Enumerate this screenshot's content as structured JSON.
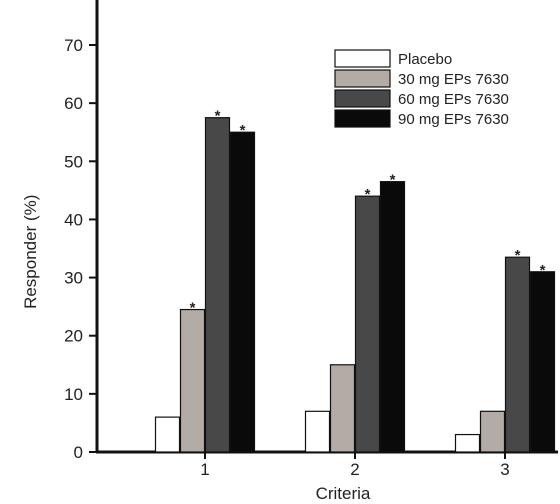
{
  "chart_data": {
    "type": "bar",
    "xlabel": "Criteria",
    "ylabel": "Responder (%)",
    "ylim": [
      0,
      73
    ],
    "yticks": [
      0,
      10,
      20,
      30,
      40,
      50,
      60,
      70
    ],
    "categories": [
      "1",
      "2",
      "3"
    ],
    "grid": false,
    "legend_position": "top-right",
    "series": [
      {
        "name": "Placebo",
        "color": "#ffffff",
        "values": [
          6,
          7,
          3
        ],
        "significant": [
          false,
          false,
          false
        ]
      },
      {
        "name": "30 mg EPs 7630",
        "color": "#b3aba5",
        "values": [
          24.5,
          15,
          7
        ],
        "significant": [
          true,
          false,
          false
        ]
      },
      {
        "name": "60 mg EPs 7630",
        "color": "#484848",
        "values": [
          57.5,
          44,
          33.5
        ],
        "significant": [
          true,
          true,
          true
        ]
      },
      {
        "name": "90 mg EPs 7630",
        "color": "#0a0a0a",
        "values": [
          55,
          46.5,
          31
        ],
        "significant": [
          true,
          true,
          true
        ]
      }
    ],
    "significance_marker": "*"
  }
}
